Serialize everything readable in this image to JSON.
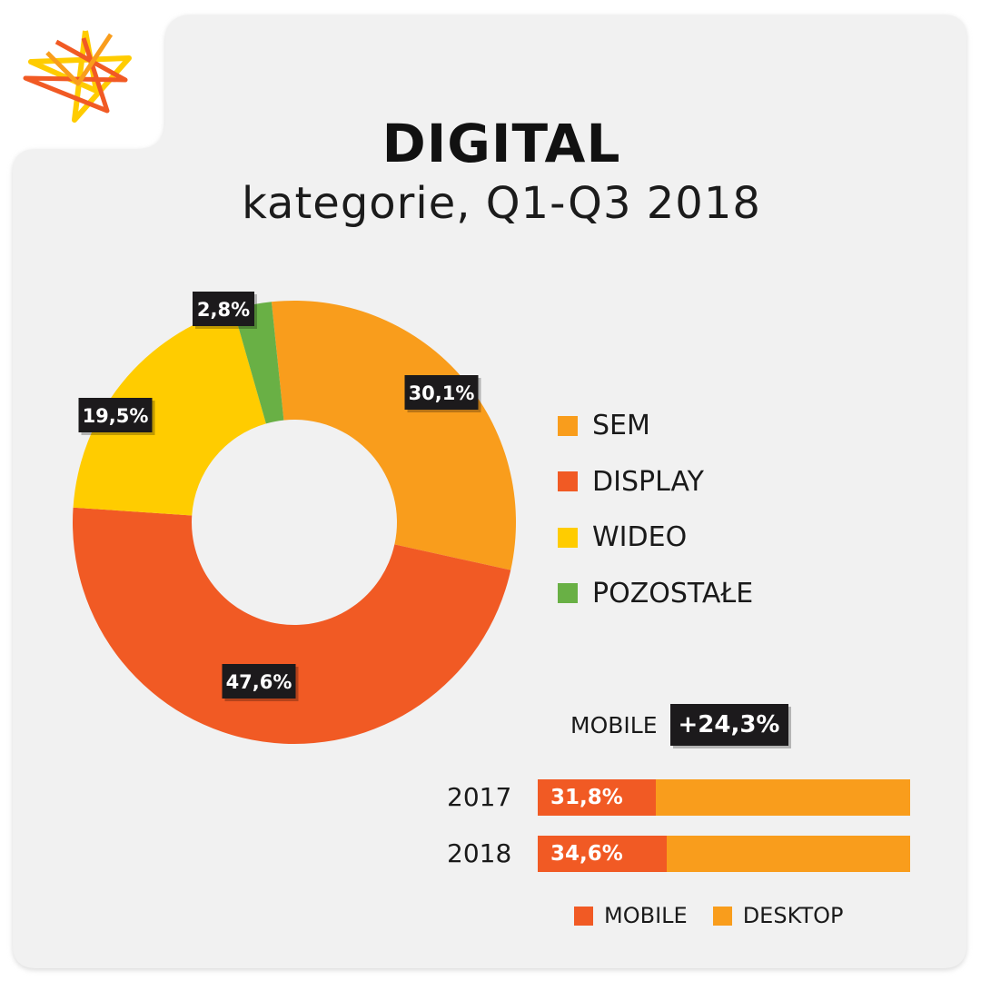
{
  "header": {
    "title": "DIGITAL",
    "subtitle": "kategorie, Q1-Q3 2018"
  },
  "colors": {
    "sem": "#f99d1c",
    "display": "#f15a24",
    "wideo": "#ffcc00",
    "pozostale": "#69b045",
    "mobile": "#f15a24",
    "desktop": "#f99d1c",
    "label_bg": "#1c1a1c"
  },
  "legend": {
    "items": [
      {
        "label": "SEM",
        "color": "#f99d1c"
      },
      {
        "label": "DISPLAY",
        "color": "#f15a24"
      },
      {
        "label": "WIDEO",
        "color": "#ffcc00"
      },
      {
        "label": "POZOSTAŁE",
        "color": "#69b045"
      }
    ]
  },
  "mobile_summary": {
    "label": "MOBILE",
    "growth": "+24,3%"
  },
  "bottom_legend": {
    "mobile": "MOBILE",
    "desktop": "DESKTOP"
  },
  "chart_data": [
    {
      "type": "pie",
      "title": "DIGITAL",
      "subtitle": "kategorie, Q1-Q3 2018",
      "donut": true,
      "categories": [
        "SEM",
        "DISPLAY",
        "WIDEO",
        "POZOSTAŁE"
      ],
      "values": [
        30.1,
        47.6,
        19.5,
        2.8
      ],
      "value_labels": [
        "30,1%",
        "47,6%",
        "19,5%",
        "2,8%"
      ],
      "colors": [
        "#f99d1c",
        "#f15a24",
        "#ffcc00",
        "#69b045"
      ],
      "legend": "right"
    },
    {
      "type": "bar",
      "orientation": "horizontal",
      "stacked": true,
      "categories": [
        "2017",
        "2018"
      ],
      "series": [
        {
          "name": "MOBILE",
          "values": [
            31.8,
            34.6
          ],
          "labels": [
            "31,8%",
            "34,6%"
          ],
          "color": "#f15a24"
        },
        {
          "name": "DESKTOP",
          "values": [
            68.2,
            65.4
          ],
          "color": "#f99d1c"
        }
      ],
      "xlim": [
        0,
        100
      ],
      "annotation": {
        "label": "MOBILE",
        "value": "+24,3%"
      },
      "legend": "bottom"
    }
  ]
}
